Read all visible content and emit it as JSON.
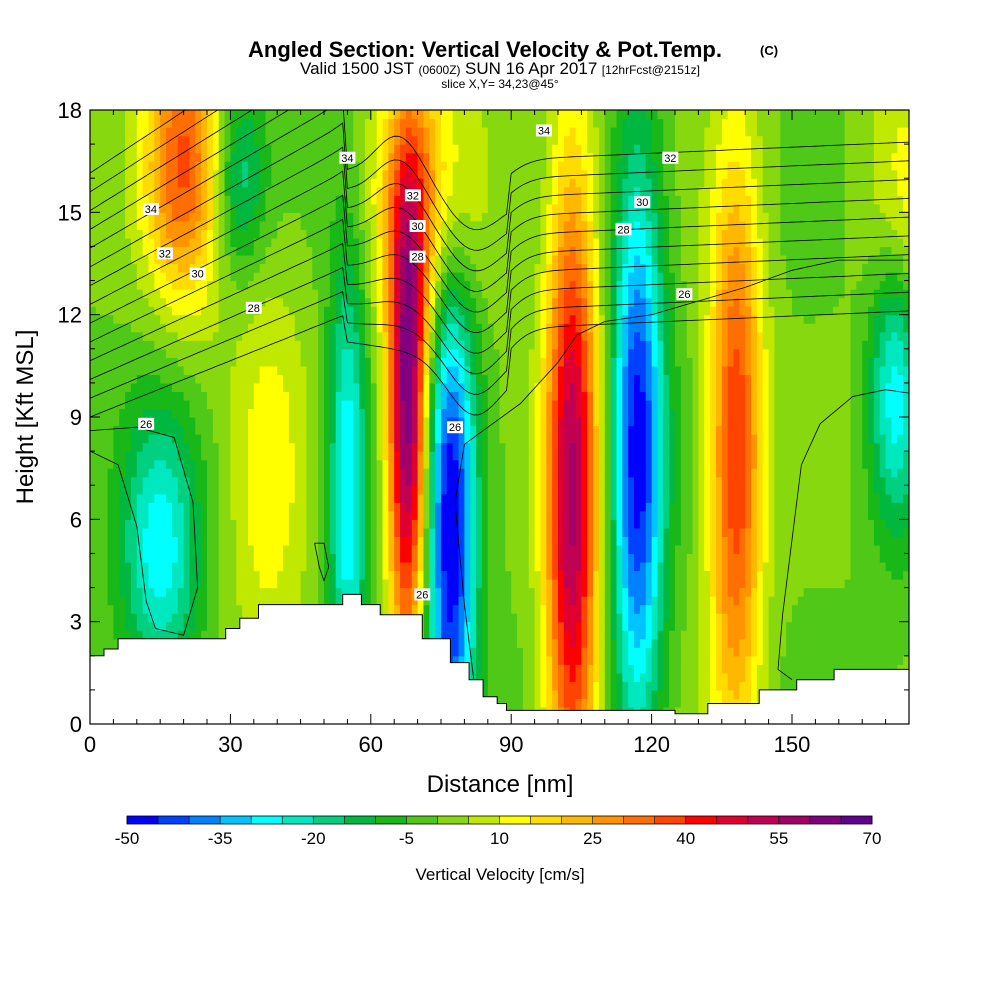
{
  "chart_data": {
    "type": "heatmap",
    "title": "Angled Section: Vertical Velocity & Pot.Temp.",
    "title_suffix": "(C)",
    "subtitle_parts": [
      "Valid 1500 JST",
      "(0600Z)",
      "SUN 16 Apr 2017",
      "[12hrFcst@2151z]"
    ],
    "slice_label": "slice X,Y= 34,23@45°",
    "xlabel": "Distance [nm]",
    "ylabel": "Height [Kft MSL]",
    "xlim": [
      0,
      175
    ],
    "ylim": [
      0,
      18
    ],
    "x_ticks": [
      0,
      30,
      60,
      90,
      120,
      150
    ],
    "y_ticks": [
      0,
      3,
      6,
      9,
      12,
      15,
      18
    ],
    "colorbar": {
      "label": "Vertical Velocity [cm/s]",
      "min": -50,
      "max": 70,
      "step": 5,
      "tick_labels": [
        -50,
        -35,
        -20,
        -5,
        10,
        25,
        40,
        55,
        70
      ],
      "colors": [
        "#0000ff",
        "#0041ff",
        "#0082ff",
        "#00c3ff",
        "#00ffff",
        "#00e8c0",
        "#00d080",
        "#00b840",
        "#18b818",
        "#50c818",
        "#88d810",
        "#c0e800",
        "#ffff00",
        "#ffdc00",
        "#ffb800",
        "#ff9400",
        "#ff6e00",
        "#ff4400",
        "#ff0000",
        "#e00030",
        "#c00050",
        "#a00068",
        "#800080",
        "#600090"
      ]
    },
    "terrain": [
      [
        0,
        2.0
      ],
      [
        3,
        2.2
      ],
      [
        6,
        2.5
      ],
      [
        29,
        2.8
      ],
      [
        32,
        3.1
      ],
      [
        36,
        3.5
      ],
      [
        54,
        3.8
      ],
      [
        58,
        3.5
      ],
      [
        62,
        3.2
      ],
      [
        71,
        2.5
      ],
      [
        77,
        1.8
      ],
      [
        81,
        1.3
      ],
      [
        84,
        0.8
      ],
      [
        87,
        0.6
      ],
      [
        89,
        0.4
      ],
      [
        125,
        0.3
      ],
      [
        132,
        0.6
      ],
      [
        143,
        1.0
      ],
      [
        151,
        1.3
      ],
      [
        159,
        1.6
      ],
      [
        175,
        1.6
      ]
    ],
    "updrafts": [
      {
        "x": 68,
        "z": 9,
        "peak": 65,
        "half_width": 3,
        "half_height": 5
      },
      {
        "x": 103,
        "z": 6.5,
        "peak": 55,
        "half_width": 4,
        "half_height": 7
      },
      {
        "x": 138,
        "z": 8,
        "peak": 40,
        "half_width": 4,
        "half_height": 6
      },
      {
        "x": 20,
        "z": 16.5,
        "peak": 35,
        "half_width": 6,
        "half_height": 3
      },
      {
        "x": 72,
        "z": 15.5,
        "peak": 25,
        "half_width": 8,
        "half_height": 3
      },
      {
        "x": 38,
        "z": 7,
        "peak": 12,
        "half_width": 6,
        "half_height": 5
      },
      {
        "x": 174,
        "z": 15,
        "peak": 15,
        "half_width": 6,
        "half_height": 3
      }
    ],
    "downdrafts": [
      {
        "x": 77,
        "z": 5.5,
        "peak": -50,
        "half_width": 4,
        "half_height": 6
      },
      {
        "x": 117,
        "z": 8,
        "peak": -48,
        "half_width": 4,
        "half_height": 6
      },
      {
        "x": 15,
        "z": 5,
        "peak": -28,
        "half_width": 6,
        "half_height": 3
      },
      {
        "x": 55,
        "z": 7,
        "peak": -30,
        "half_width": 3,
        "half_height": 5
      },
      {
        "x": 172,
        "z": 10,
        "peak": -30,
        "half_width": 4,
        "half_height": 3
      },
      {
        "x": 32,
        "z": 16,
        "peak": -20,
        "half_width": 4,
        "half_height": 2
      }
    ],
    "isentrope_labels": [
      {
        "value": "34",
        "x": 13,
        "z": 15.1
      },
      {
        "value": "34",
        "x": 55,
        "z": 16.6
      },
      {
        "value": "34",
        "x": 97,
        "z": 17.4
      },
      {
        "value": "32",
        "x": 16,
        "z": 13.8
      },
      {
        "value": "32",
        "x": 69,
        "z": 15.5
      },
      {
        "value": "32",
        "x": 124,
        "z": 16.6
      },
      {
        "value": "30",
        "x": 23,
        "z": 13.2
      },
      {
        "value": "30",
        "x": 70,
        "z": 14.6
      },
      {
        "value": "30",
        "x": 118,
        "z": 15.3
      },
      {
        "value": "28",
        "x": 35,
        "z": 12.2
      },
      {
        "value": "28",
        "x": 70,
        "z": 13.7
      },
      {
        "value": "28",
        "x": 114,
        "z": 14.5
      },
      {
        "value": "26",
        "x": 12,
        "z": 8.8
      },
      {
        "value": "26",
        "x": 78,
        "z": 8.7
      },
      {
        "value": "26",
        "x": 127,
        "z": 12.6
      },
      {
        "value": "26",
        "x": 71,
        "z": 3.8
      }
    ]
  }
}
